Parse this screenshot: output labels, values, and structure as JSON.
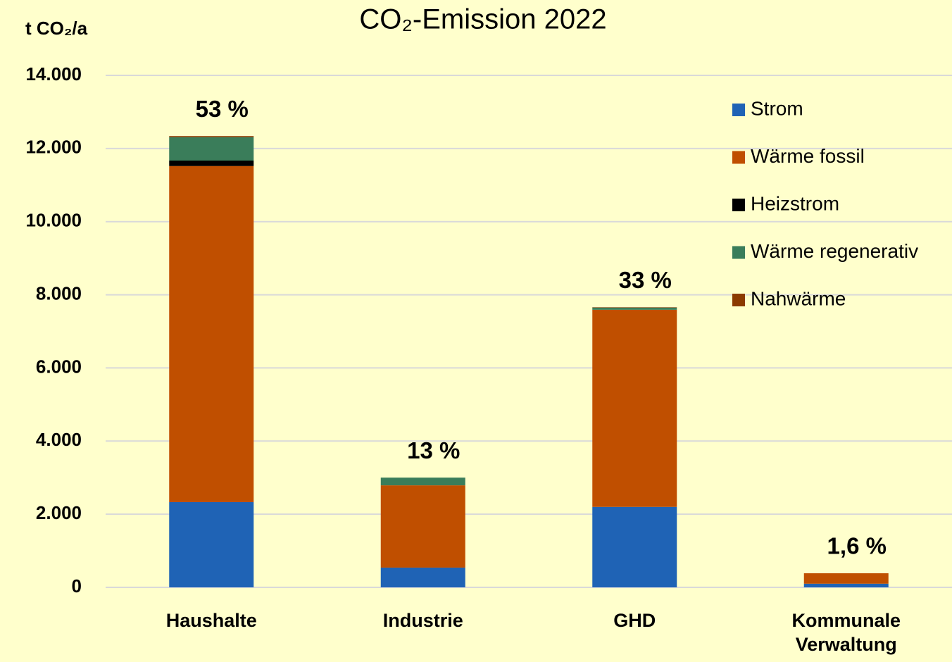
{
  "chart_data": {
    "type": "stacked_bar",
    "title": "CO₂-Emission 2022",
    "y_label": "t CO₂/a",
    "categories": [
      "Haushalte",
      "Industrie",
      "GHD",
      "Kommunale Verwaltung"
    ],
    "series": [
      {
        "name": "Strom",
        "color": "#1f63b5",
        "values": [
          2330,
          540,
          2200,
          100
        ]
      },
      {
        "name": "Wärme fossil",
        "color": "#c04f00",
        "values": [
          9190,
          2250,
          5390,
          285
        ]
      },
      {
        "name": "Heizstrom",
        "color": "#000000",
        "values": [
          150,
          0,
          0,
          0
        ]
      },
      {
        "name": "Wärme regenerativ",
        "color": "#3a7d5a",
        "values": [
          640,
          210,
          60,
          0
        ]
      },
      {
        "name": "Nahwärme",
        "color": "#8b3a00",
        "values": [
          30,
          0,
          10,
          0
        ]
      }
    ],
    "shares": [
      {
        "value": 53,
        "label": "53 %"
      },
      {
        "value": 13,
        "label": "13 %"
      },
      {
        "value": 33,
        "label": "33 %"
      },
      {
        "value": 1.6,
        "label": "1,6 %"
      }
    ],
    "ylim": [
      0,
      14000
    ],
    "yticks": [
      0,
      {
        "value": 2000,
        "label": "2.000"
      },
      {
        "value": 4000,
        "label": "4.000"
      },
      {
        "value": 6000,
        "label": "6.000"
      },
      {
        "value": 8000,
        "label": "8.000"
      },
      {
        "value": 10000,
        "label": "10.000"
      },
      {
        "value": 12000,
        "label": "12.000"
      },
      {
        "value": 14000,
        "label": "14.000"
      }
    ],
    "grid": true,
    "legend": "right"
  }
}
